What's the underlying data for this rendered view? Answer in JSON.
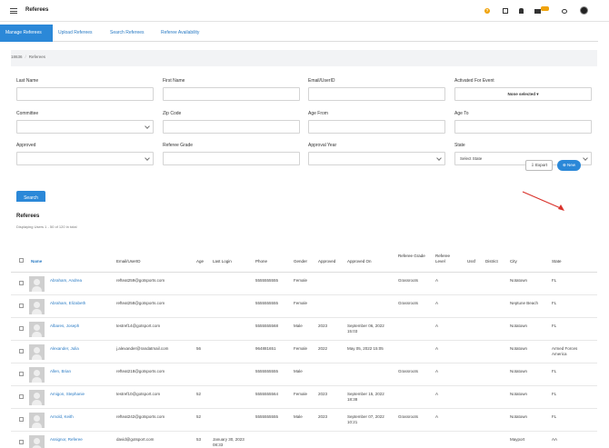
{
  "app": {
    "title": "Referees",
    "mail_badge": ""
  },
  "tabs": [
    {
      "label": "Manage Referees"
    },
    {
      "label": "Upload Referees"
    },
    {
      "label": "Search Referees"
    },
    {
      "label": "Referee Availability"
    }
  ],
  "breadcrumb": {
    "root": "18636",
    "current": "Referees"
  },
  "filters": {
    "last_name": "Last Name",
    "first_name": "First Name",
    "email": "Email/UserID",
    "activated": "Activated For Event",
    "activated_value": "None selected",
    "committee": "Committee",
    "zip": "Zip Code",
    "age_from": "Age From",
    "age_to": "Age To",
    "approved": "Approved",
    "referee_grade": "Referee Grade",
    "approval_year": "Approval Year",
    "state": "State",
    "state_value": "Select State",
    "search_label": "Search"
  },
  "list": {
    "title": "Referees",
    "subtitle": "Displaying Users 1 - 50 of 120 in total",
    "export_label": "Export",
    "new_label": "New"
  },
  "columns": {
    "name": "Name",
    "email": "Email/UserID",
    "age": "Age",
    "last_login": "Last Login",
    "phone": "Phone",
    "gender": "Gender",
    "approved": "Approved",
    "approved_on": "Approved On",
    "grade": "Referee Grade",
    "level": "Referee Level",
    "ussf": "Ussf",
    "district": "District",
    "city": "City",
    "state": "State"
  },
  "rows": [
    {
      "name": "Abraham, Andrea",
      "email": "refteat259@gotsports.com",
      "age": "",
      "login": "",
      "phone": "5555555555",
      "gender": "Female",
      "approved": "",
      "approved_on": "",
      "grade": "Grassroots",
      "level": "A",
      "city": "Notatown",
      "state": "FL"
    },
    {
      "name": "Abraham, Elizabeth",
      "email": "refteat258@gotsports.com",
      "age": "",
      "login": "",
      "phone": "5555555555",
      "gender": "Female",
      "approved": "",
      "approved_on": "",
      "grade": "Grassroots",
      "level": "A",
      "city": "Neptune Beach",
      "state": "FL"
    },
    {
      "name": "Albares, Joseph",
      "email": "testref14@gotsport.com",
      "age": "",
      "login": "",
      "phone": "5555555568",
      "gender": "Male",
      "approved": "2023",
      "approved_on": "September 06, 2022 15:03",
      "grade": "",
      "level": "A",
      "city": "Notatown",
      "state": "FL"
    },
    {
      "name": "Alexander, Julia",
      "email": "j.alexander@randatmail.com",
      "age": "56",
      "login": "",
      "phone": "964881651",
      "gender": "Female",
      "approved": "2022",
      "approved_on": "May 05, 2022 15:05",
      "grade": "",
      "level": "A",
      "city": "Notatown",
      "state": "Armed Forces America"
    },
    {
      "name": "Allen, Brian",
      "email": "refteat218@gotsports.com",
      "age": "",
      "login": "",
      "phone": "5555555555",
      "gender": "Male",
      "approved": "",
      "approved_on": "",
      "grade": "Grassroots",
      "level": "A",
      "city": "Notatown",
      "state": "FL"
    },
    {
      "name": "Amigon, Stephanie",
      "email": "testref10@gotsport.com",
      "age": "52",
      "login": "",
      "phone": "5555555564",
      "gender": "Female",
      "approved": "2023",
      "approved_on": "September 15, 2022 18:38",
      "grade": "",
      "level": "A",
      "city": "Notatown",
      "state": "FL"
    },
    {
      "name": "Arnold, Keith",
      "email": "refteat242@gotsports.com",
      "age": "52",
      "login": "",
      "phone": "5555555555",
      "gender": "Male",
      "approved": "2023",
      "approved_on": "September 07, 2022 10:21",
      "grade": "Grassroots",
      "level": "A",
      "city": "Notatown",
      "state": "FL"
    },
    {
      "name": "Assignor, Referee",
      "email": "david@gotsport.com",
      "age": "53",
      "login": "January 30, 2023 08:33",
      "phone": "",
      "gender": "",
      "approved": "",
      "approved_on": "",
      "grade": "",
      "level": "",
      "city": "Mayport",
      "state": "AA"
    }
  ]
}
